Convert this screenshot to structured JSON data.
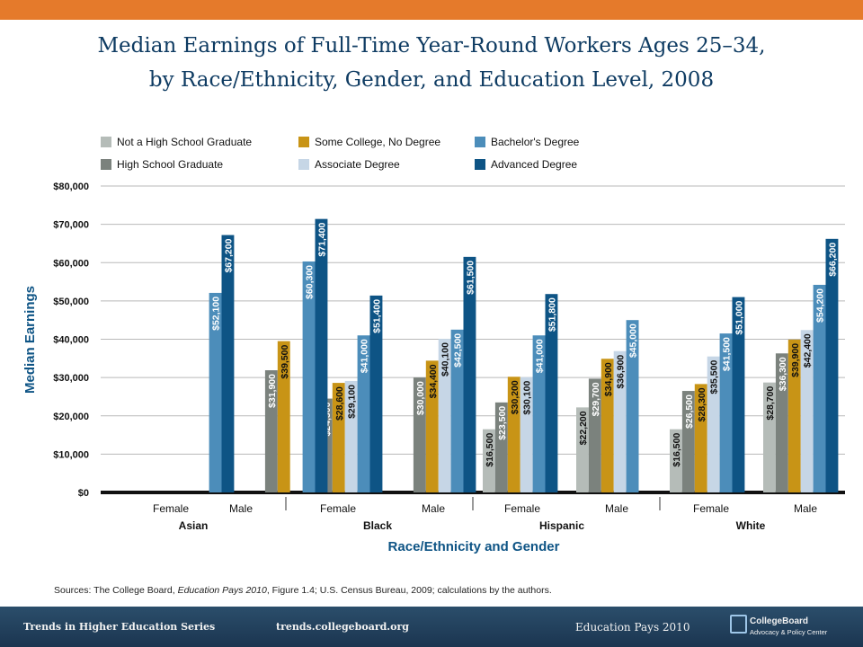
{
  "title": {
    "line1": "Median Earnings of Full-Time Year-Round Workers Ages 25–34,",
    "line2": "by Race/Ethnicity, Gender, and Education Level, 2008"
  },
  "source_note": {
    "prefix": "Sources: The College Board, ",
    "italic1": "Education Pays 2010",
    "mid": ", Figure 1.4; U.S. Census Bureau, 2009; calculations by the authors."
  },
  "footer": {
    "series": "Trends in Higher Education Series",
    "url": "trends.collegeboard.org",
    "title": "Education Pays 2010",
    "logo_line1": "CollegeBoard",
    "logo_line2": "Advocacy & Policy Center"
  },
  "chart_data": {
    "type": "bar",
    "ylabel": "Median Earnings",
    "xlabel": "Race/Ethnicity and Gender",
    "ylim": [
      0,
      80000
    ],
    "yticks": [
      "$0",
      "$10,000",
      "$20,000",
      "$30,000",
      "$40,000",
      "$50,000",
      "$60,000",
      "$70,000",
      "$80,000"
    ],
    "legend_position": "top",
    "groups": [
      "Asian",
      "Black",
      "Hispanic",
      "White"
    ],
    "categories": [
      "Female",
      "Male",
      "Female",
      "Male",
      "Female",
      "Male",
      "Female",
      "Male"
    ],
    "series": [
      {
        "name": "Not a High School Graduate",
        "color": "#b5bcb8",
        "values": [
          null,
          null,
          null,
          null,
          16500,
          22200,
          16500,
          28700
        ],
        "labels": [
          null,
          null,
          null,
          null,
          "$16,500",
          "$22,200",
          "$16,500",
          "$28,700"
        ]
      },
      {
        "name": "High School Graduate",
        "color": "#7b827d",
        "values": [
          null,
          31900,
          24500,
          30000,
          23500,
          29700,
          26500,
          36300
        ],
        "labels": [
          null,
          "$31,900",
          "$24,500",
          "$30,000",
          "$23,500",
          "$29,700",
          "$26,500",
          "$36,300"
        ]
      },
      {
        "name": "Some College, No Degree",
        "color": "#c89416",
        "values": [
          null,
          39500,
          28600,
          34400,
          30200,
          34900,
          28300,
          39900
        ],
        "labels": [
          null,
          "$39,500",
          "$28,600",
          "$34,400",
          "$30,200",
          "$34,900",
          "$28,300",
          "$39,900"
        ]
      },
      {
        "name": "Associate Degree",
        "color": "#c6d6e6",
        "values": [
          null,
          null,
          29100,
          40100,
          30100,
          36900,
          35500,
          42400
        ],
        "labels": [
          null,
          null,
          "$29,100",
          "$40,100",
          "$30,100",
          "$36,900",
          "$35,500",
          "$42,400"
        ]
      },
      {
        "name": "Bachelor's Degree",
        "color": "#4c8dba",
        "values": [
          52100,
          60300,
          41000,
          42500,
          41000,
          45000,
          41500,
          54200
        ],
        "labels": [
          "$52,100",
          "$60,300",
          "$41,000",
          "$42,500",
          "$41,000",
          "$45,000",
          "$41,500",
          "$54,200"
        ]
      },
      {
        "name": "Advanced Degree",
        "color": "#0e5485",
        "values": [
          67200,
          71400,
          51400,
          61500,
          51800,
          null,
          51000,
          66200
        ],
        "labels": [
          "$67,200",
          "$71,400",
          "$51,400",
          "$61,500",
          "$51,800",
          null,
          "$51,000",
          "$66,200"
        ]
      }
    ],
    "grid": true,
    "grid_color": "#b9b9b9",
    "axis_color": "#0e5485",
    "text_color": "#111111"
  }
}
